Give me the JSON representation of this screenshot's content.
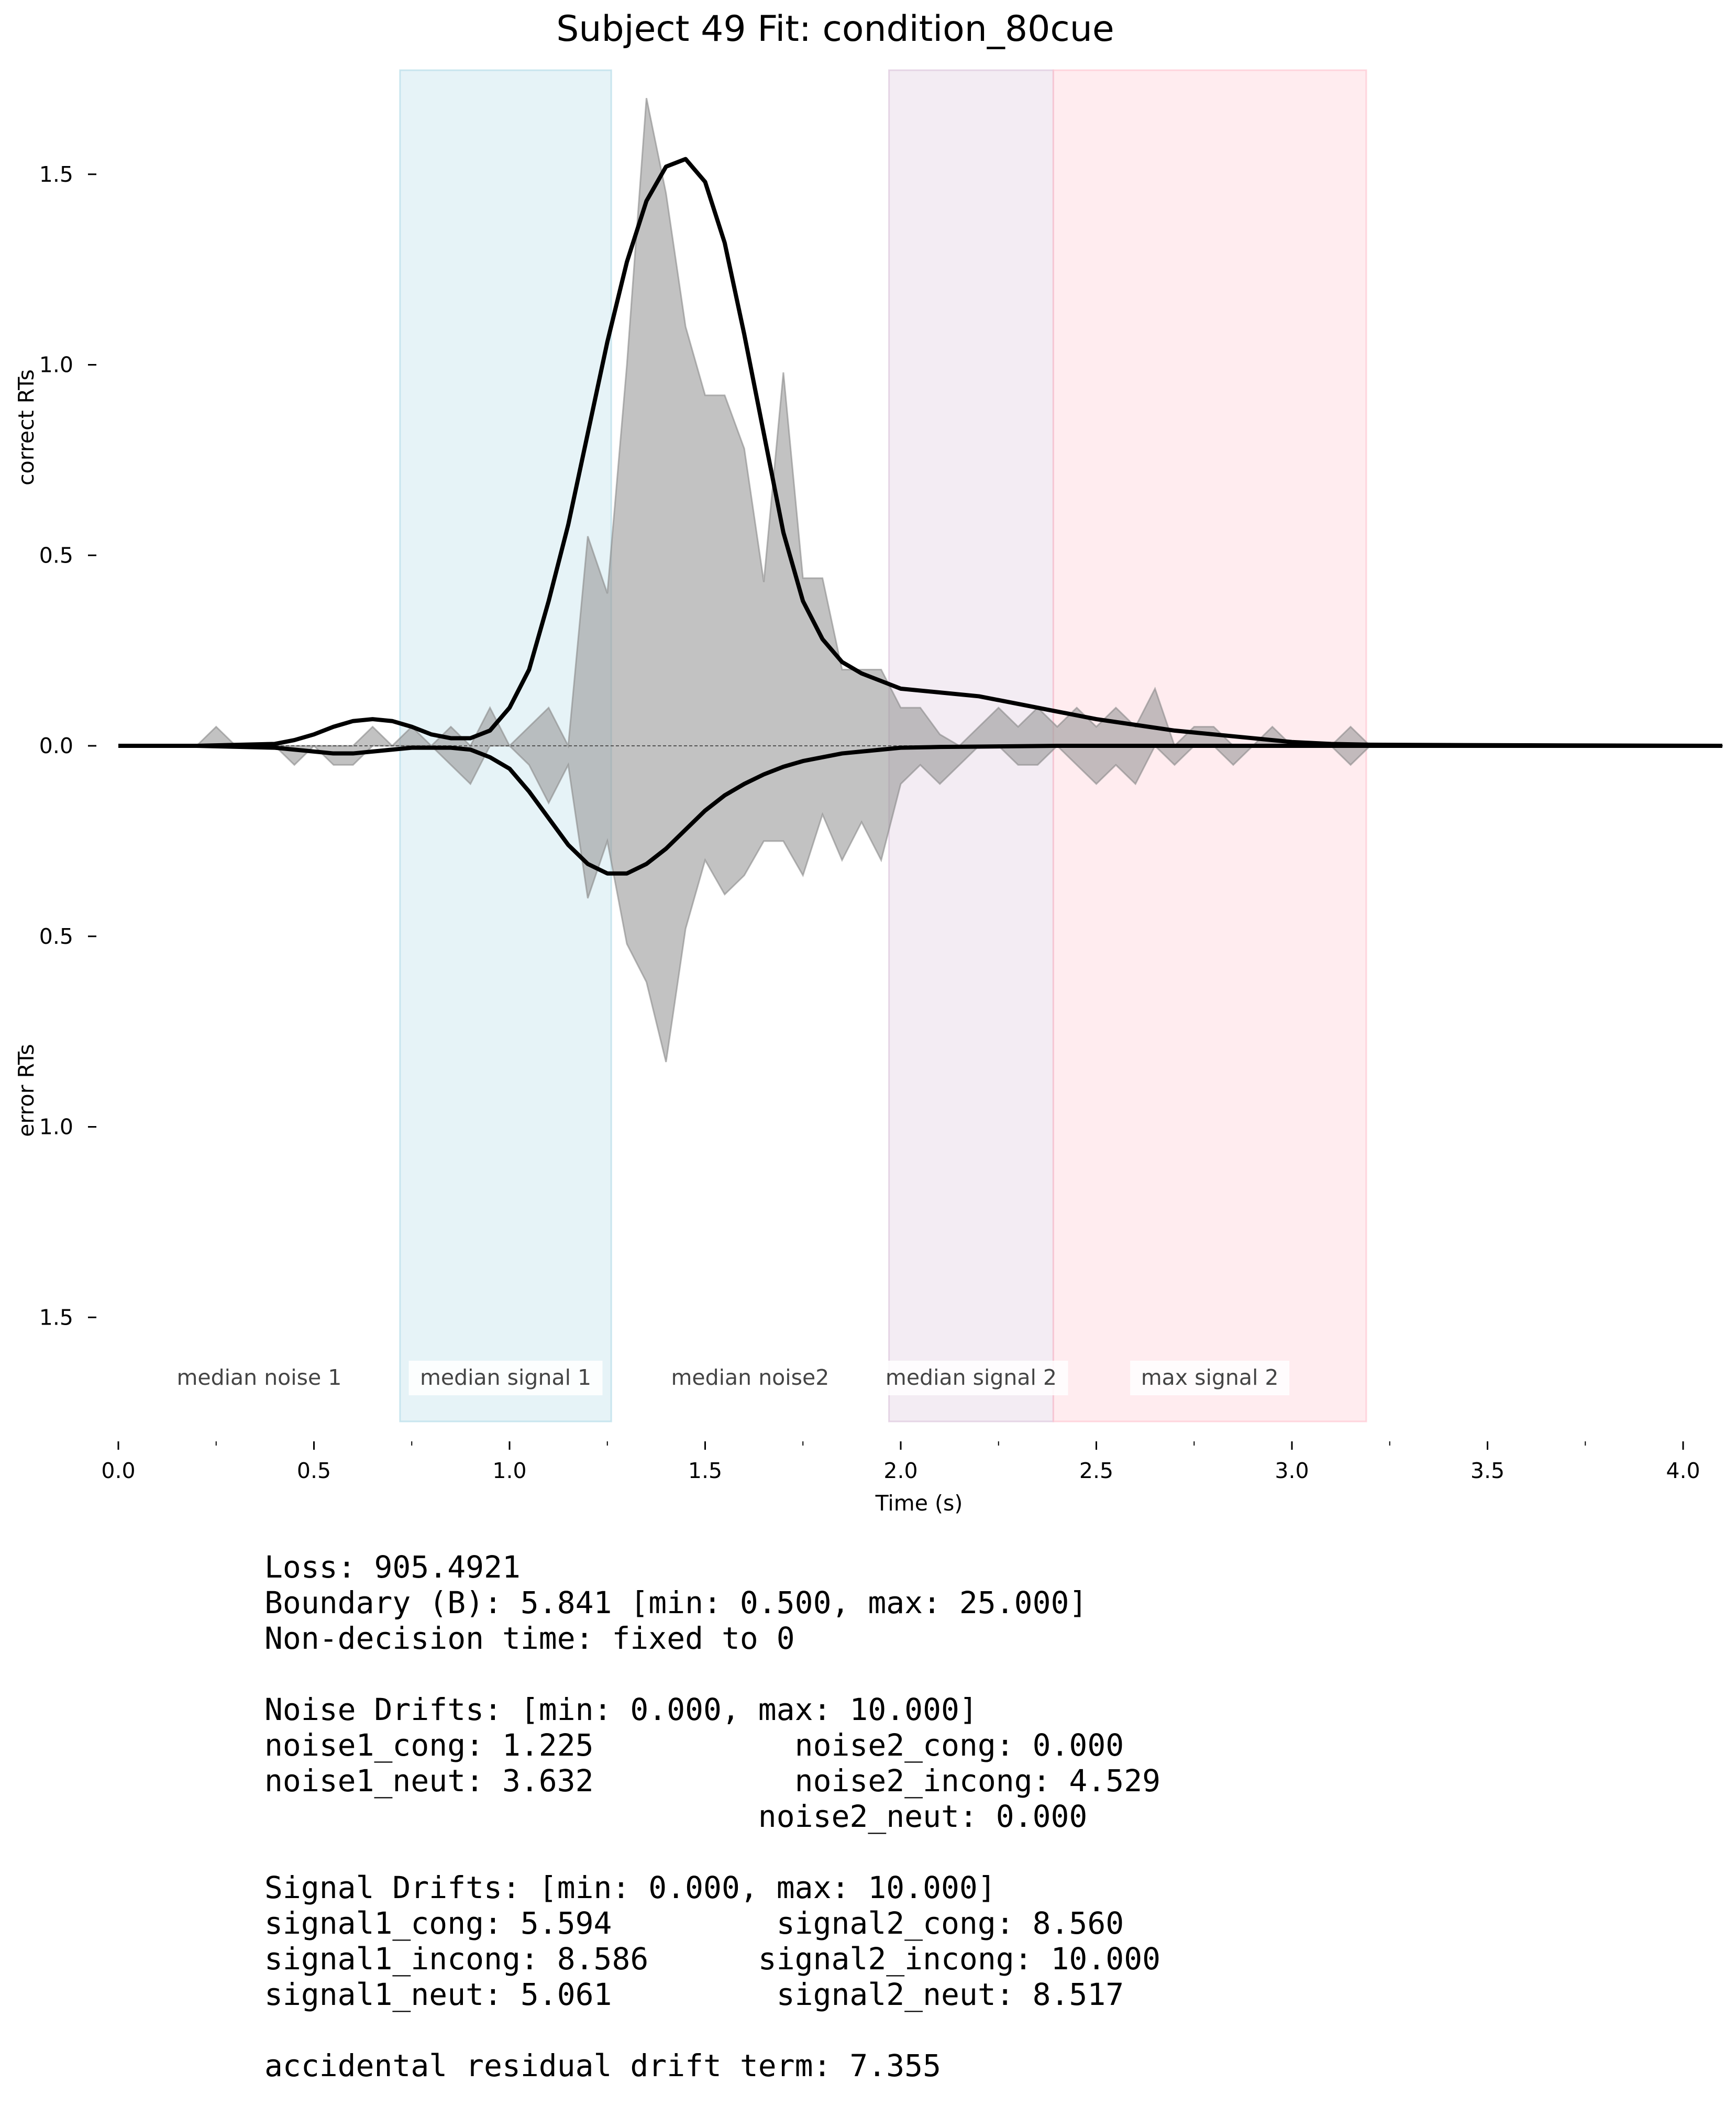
{
  "chart_data": {
    "type": "area",
    "title": "Subject 49 Fit: condition_80cue",
    "xlabel": "Time (s)",
    "ylabel_upper": "correct RTs",
    "ylabel_lower": "error RTs",
    "xlim": [
      0.0,
      4.1
    ],
    "ylim": [
      -1.7,
      1.7
    ],
    "x_ticks": [
      "0.0",
      "0.5",
      "1.0",
      "1.5",
      "2.0",
      "2.5",
      "3.0",
      "3.5",
      "4.0"
    ],
    "y_ticks": [
      {
        "value": 1.5,
        "label": "1.5"
      },
      {
        "value": 1.0,
        "label": "1.0"
      },
      {
        "value": 0.5,
        "label": "0.5"
      },
      {
        "value": 0.0,
        "label": "0.0"
      },
      {
        "value": -0.5,
        "label": "0.5"
      },
      {
        "value": -1.0,
        "label": "1.0"
      },
      {
        "value": -1.5,
        "label": "1.5"
      }
    ],
    "phases": [
      {
        "label": "median noise 1",
        "start": 0.0,
        "end": 0.72,
        "color": null,
        "label_box": false
      },
      {
        "label": "median signal 1",
        "start": 0.72,
        "end": 1.26,
        "color": "#ADD8E6",
        "label_box": true
      },
      {
        "label": "median noise2",
        "start": 1.26,
        "end": 1.97,
        "color": null,
        "label_box": false
      },
      {
        "label": "median signal 2",
        "start": 1.97,
        "end": 2.39,
        "color": "#D8BFD8",
        "label_box": true
      },
      {
        "label": "max signal 2",
        "start": 2.39,
        "end": 3.19,
        "color": "#FFC0CB",
        "label_box": true
      }
    ],
    "series": [
      {
        "role": "histogram",
        "color": "#999999",
        "x": [
          0.0,
          0.05,
          0.1,
          0.15,
          0.2,
          0.25,
          0.3,
          0.35,
          0.4,
          0.45,
          0.5,
          0.55,
          0.6,
          0.65,
          0.7,
          0.75,
          0.8,
          0.85,
          0.9,
          0.95,
          1.0,
          1.05,
          1.1,
          1.15,
          1.2,
          1.25,
          1.3,
          1.35,
          1.4,
          1.45,
          1.5,
          1.55,
          1.6,
          1.65,
          1.7,
          1.75,
          1.8,
          1.85,
          1.9,
          1.95,
          2.0,
          2.05,
          2.1,
          2.15,
          2.2,
          2.25,
          2.3,
          2.35,
          2.4,
          2.45,
          2.5,
          2.55,
          2.6,
          2.65,
          2.7,
          2.75,
          2.8,
          2.85,
          2.9,
          2.95,
          3.0,
          3.05,
          3.1,
          3.15,
          3.2
        ],
        "correct": [
          0,
          0,
          0,
          0,
          0,
          0.05,
          0,
          0,
          0,
          0,
          0,
          0,
          0,
          0.05,
          0,
          0.05,
          0,
          0.05,
          0,
          0.1,
          0,
          0.05,
          0.1,
          0,
          0.55,
          0.4,
          1.0,
          1.7,
          1.45,
          1.1,
          0.92,
          0.92,
          0.78,
          0.43,
          0.98,
          0.44,
          0.44,
          0.2,
          0.2,
          0.2,
          0.1,
          0.1,
          0.03,
          0,
          0.05,
          0.1,
          0.05,
          0.1,
          0.05,
          0.1,
          0.05,
          0.1,
          0.05,
          0.15,
          0,
          0.05,
          0.05,
          0,
          0,
          0.05,
          0,
          0,
          0,
          0.05,
          0
        ],
        "error": [
          0,
          0,
          0,
          0,
          0,
          0,
          0,
          0,
          0,
          0.05,
          0,
          0.05,
          0.05,
          0,
          0,
          0,
          0,
          0.05,
          0.1,
          0,
          0,
          0.05,
          0.15,
          0.05,
          0.4,
          0.25,
          0.52,
          0.62,
          0.83,
          0.48,
          0.3,
          0.39,
          0.34,
          0.25,
          0.25,
          0.34,
          0.18,
          0.3,
          0.2,
          0.3,
          0.1,
          0.05,
          0.1,
          0.05,
          0,
          0,
          0.05,
          0.05,
          0,
          0.05,
          0.1,
          0.05,
          0.1,
          0,
          0.05,
          0,
          0,
          0.05,
          0,
          0,
          0,
          0,
          0,
          0.05,
          0
        ]
      },
      {
        "role": "model",
        "color": "#000000",
        "x": [
          0.0,
          0.2,
          0.4,
          0.45,
          0.5,
          0.55,
          0.6,
          0.65,
          0.7,
          0.75,
          0.8,
          0.85,
          0.9,
          0.95,
          1.0,
          1.05,
          1.1,
          1.15,
          1.2,
          1.25,
          1.3,
          1.35,
          1.4,
          1.45,
          1.5,
          1.55,
          1.6,
          1.65,
          1.7,
          1.75,
          1.8,
          1.85,
          1.9,
          1.95,
          2.0,
          2.1,
          2.2,
          2.3,
          2.4,
          2.5,
          2.6,
          2.7,
          2.8,
          2.9,
          3.0,
          3.1,
          3.2,
          3.4,
          3.7,
          4.1
        ],
        "correct": [
          0,
          0,
          0.005,
          0.015,
          0.03,
          0.05,
          0.065,
          0.07,
          0.065,
          0.05,
          0.03,
          0.02,
          0.02,
          0.04,
          0.1,
          0.2,
          0.38,
          0.58,
          0.82,
          1.06,
          1.27,
          1.43,
          1.52,
          1.54,
          1.48,
          1.32,
          1.08,
          0.82,
          0.56,
          0.38,
          0.28,
          0.22,
          0.19,
          0.17,
          0.15,
          0.14,
          0.13,
          0.11,
          0.09,
          0.07,
          0.055,
          0.04,
          0.03,
          0.02,
          0.01,
          0.005,
          0.003,
          0.002,
          0.001,
          0.0
        ],
        "error": [
          0,
          0,
          0.005,
          0.01,
          0.015,
          0.02,
          0.02,
          0.015,
          0.01,
          0.005,
          0.005,
          0.005,
          0.01,
          0.03,
          0.06,
          0.12,
          0.19,
          0.26,
          0.31,
          0.335,
          0.335,
          0.31,
          0.27,
          0.22,
          0.17,
          0.13,
          0.1,
          0.075,
          0.055,
          0.04,
          0.03,
          0.02,
          0.015,
          0.01,
          0.005,
          0.003,
          0.002,
          0.001,
          0.0,
          0.0,
          0.0,
          0.0,
          0.0,
          0.0,
          0.0,
          0.0,
          0.0,
          0.0,
          0.0,
          0.0
        ]
      }
    ],
    "grid": false,
    "legend": false
  },
  "stats": {
    "lines": [
      "Loss: 905.4921",
      "Boundary (B): 5.841 [min: 0.500, max: 25.000]",
      "Non-decision time: fixed to 0",
      "",
      "Noise Drifts: [min: 0.000, max: 10.000]",
      "noise1_cong: 1.225           noise2_cong: 0.000",
      "noise1_neut: 3.632           noise2_incong: 4.529",
      "                           noise2_neut: 0.000",
      "",
      "Signal Drifts: [min: 0.000, max: 10.000]",
      "signal1_cong: 5.594         signal2_cong: 8.560",
      "signal1_incong: 8.586      signal2_incong: 10.000",
      "signal1_neut: 5.061         signal2_neut: 8.517",
      "",
      "accidental residual drift term: 7.355"
    ]
  }
}
